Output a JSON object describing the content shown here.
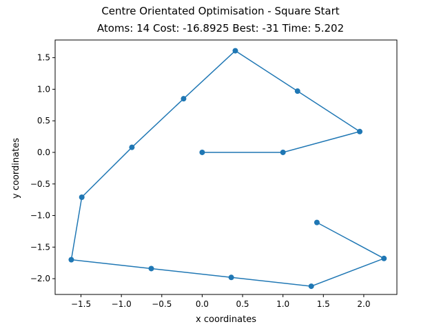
{
  "chart_data": {
    "type": "line",
    "title": "Centre Orientated Optimisation - Square Start",
    "subtitle": "Atoms: 14 Cost: -16.8925 Best: -31 Time: 5.202",
    "xlabel": "x coordinates",
    "ylabel": "y coordinates",
    "xlim": [
      -1.82,
      2.41
    ],
    "ylim": [
      -2.25,
      1.78
    ],
    "xticks": [
      -1.5,
      -1.0,
      -0.5,
      0.0,
      0.5,
      1.0,
      1.5,
      2.0
    ],
    "xtick_labels": [
      "−1.5",
      "−1.0",
      "−0.5",
      "0.0",
      "0.5",
      "1.0",
      "1.5",
      "2.0"
    ],
    "yticks": [
      1.5,
      1.0,
      0.5,
      0.0,
      -0.5,
      -1.0,
      -1.5,
      -2.0
    ],
    "ytick_labels": [
      "1.5",
      "1.0",
      "0.5",
      "0.0",
      "−0.5",
      "−1.0",
      "−1.5",
      "−2.0"
    ],
    "grid": false,
    "series": [
      {
        "color": "#1f77b4",
        "marker": "circle",
        "points": [
          {
            "x": 0.0,
            "y": 0.0
          },
          {
            "x": 1.0,
            "y": 0.0
          },
          {
            "x": 1.95,
            "y": 0.33
          },
          {
            "x": 1.18,
            "y": 0.97
          },
          {
            "x": 0.41,
            "y": 1.61
          },
          {
            "x": -0.23,
            "y": 0.85
          },
          {
            "x": -0.87,
            "y": 0.08
          },
          {
            "x": -1.49,
            "y": -0.71
          },
          {
            "x": -1.62,
            "y": -1.7
          },
          {
            "x": -0.63,
            "y": -1.84
          },
          {
            "x": 0.36,
            "y": -1.98
          },
          {
            "x": 1.35,
            "y": -2.12
          },
          {
            "x": 2.25,
            "y": -1.68
          },
          {
            "x": 1.42,
            "y": -1.11
          }
        ]
      }
    ]
  }
}
